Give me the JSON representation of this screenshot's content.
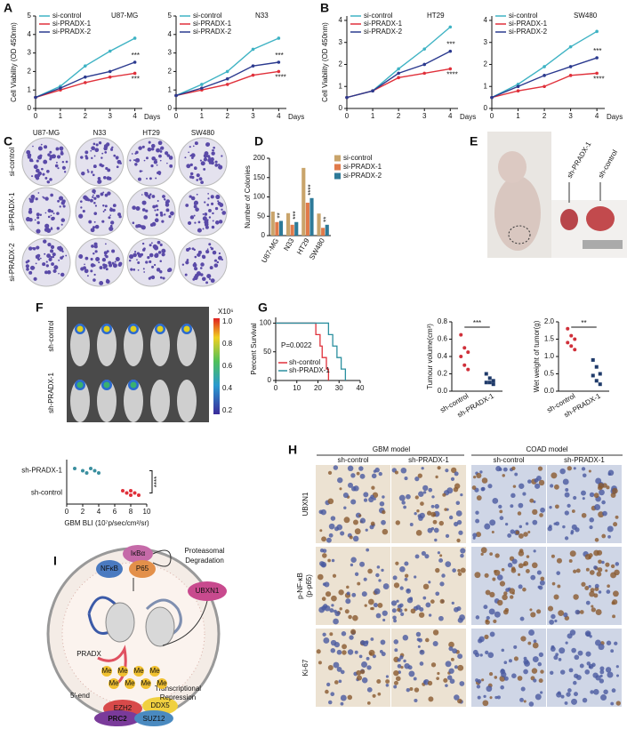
{
  "panel_labels": [
    "A",
    "B",
    "C",
    "D",
    "E",
    "F",
    "G",
    "H",
    "I"
  ],
  "colony_assay": {
    "columns": [
      "U87-MG",
      "N33",
      "HT29",
      "SW480"
    ],
    "rows": [
      "si-control",
      "si-PRADX-1",
      "si-PRADX-2"
    ]
  },
  "xenograft_photo": {
    "labels": [
      "sh-PRADX-1",
      "sh-control"
    ]
  },
  "bli_image": {
    "rows": [
      "sh-control",
      "sh-PRADX-1"
    ],
    "colorbar_unit": "X10⁶",
    "colorbar_ticks": [
      "1.0",
      "0.8",
      "0.6",
      "0.4",
      "0.2"
    ]
  },
  "ihc": {
    "models": [
      "GBM model",
      "COAD model"
    ],
    "columns": [
      "sh-control",
      "sh-PRADX-1",
      "sh-control",
      "sh-PRADX-1"
    ],
    "rows": [
      [
        "UBXN1"
      ],
      [
        "p-NF-κB",
        "(p-p65)"
      ],
      [
        "Ki-67"
      ]
    ]
  },
  "diagram": {
    "ikba": "IκBα",
    "nfkb": "NFκB",
    "p65": "P65",
    "degradation": [
      "Proteasomal",
      "Degradation"
    ],
    "ubxn1": "UBXN1",
    "pradx": "PRADX",
    "me": [
      "Me",
      "Me",
      "Me",
      "Me",
      "Me",
      "Me",
      "Me",
      "Me"
    ],
    "repression": [
      "Transcriptional",
      "Repression"
    ],
    "five_end": "5'-end",
    "ezh2": "EZH2",
    "ddx5": "DDX5",
    "prc2": "PRC2",
    "suz12": "SUZ12"
  },
  "chart_data": [
    {
      "type": "line",
      "title": "U87-MG",
      "ylabel": "Cell Viability (OD 450nm)",
      "xlabel": "Days",
      "x": [
        0,
        1,
        2,
        3,
        4
      ],
      "xlim": [
        0,
        4.3
      ],
      "xticks": [
        0,
        1,
        2,
        3,
        4
      ],
      "ylim": [
        0,
        5
      ],
      "yticks": [
        0,
        1,
        2,
        3,
        4,
        5
      ],
      "series": [
        {
          "name": "si-control",
          "color": "#3fb3c4",
          "values": [
            0.6,
            1.2,
            2.3,
            3.1,
            3.8
          ]
        },
        {
          "name": "si-PRADX-1",
          "color": "#e0313b",
          "values": [
            0.6,
            1.0,
            1.4,
            1.7,
            1.9
          ]
        },
        {
          "name": "si-PRADX-2",
          "color": "#2b3a8f",
          "values": [
            0.6,
            1.1,
            1.7,
            2.0,
            2.5
          ]
        }
      ],
      "annotations": [
        "***",
        "***"
      ]
    },
    {
      "type": "line",
      "title": "N33",
      "xlabel": "Days",
      "x": [
        0,
        1,
        2,
        3,
        4
      ],
      "xlim": [
        0,
        4.3
      ],
      "xticks": [
        0,
        1,
        2,
        3,
        4
      ],
      "ylim": [
        0,
        5
      ],
      "yticks": [
        0,
        1,
        2,
        3,
        4,
        5
      ],
      "series": [
        {
          "name": "si-control",
          "color": "#3fb3c4",
          "values": [
            0.7,
            1.3,
            2.0,
            3.2,
            3.8
          ]
        },
        {
          "name": "si-PRADX-1",
          "color": "#e0313b",
          "values": [
            0.7,
            1.0,
            1.3,
            1.8,
            2.0
          ]
        },
        {
          "name": "si-PRADX-2",
          "color": "#2b3a8f",
          "values": [
            0.7,
            1.1,
            1.6,
            2.3,
            2.5
          ]
        }
      ],
      "annotations": [
        "***",
        "****"
      ]
    },
    {
      "type": "line",
      "title": "HT29",
      "ylabel": "Cell Viability (OD 450nm)",
      "xlabel": "Days",
      "x": [
        0,
        1,
        2,
        3,
        4
      ],
      "xlim": [
        0,
        4.3
      ],
      "xticks": [
        0,
        1,
        2,
        3,
        4
      ],
      "ylim": [
        0,
        4.2
      ],
      "yticks": [
        0,
        1,
        2,
        3,
        4
      ],
      "series": [
        {
          "name": "si-control",
          "color": "#3fb3c4",
          "values": [
            0.5,
            0.8,
            1.8,
            2.7,
            3.7
          ]
        },
        {
          "name": "si-PRADX-1",
          "color": "#e0313b",
          "values": [
            0.5,
            0.8,
            1.4,
            1.6,
            1.8
          ]
        },
        {
          "name": "si-PRADX-2",
          "color": "#2b3a8f",
          "values": [
            0.5,
            0.8,
            1.6,
            2.0,
            2.6
          ]
        }
      ],
      "annotations": [
        "***",
        "****"
      ]
    },
    {
      "type": "line",
      "title": "SW480",
      "xlabel": "Days",
      "x": [
        0,
        1,
        2,
        3,
        4
      ],
      "xlim": [
        0,
        4.3
      ],
      "xticks": [
        0,
        1,
        2,
        3,
        4
      ],
      "ylim": [
        0,
        4.2
      ],
      "yticks": [
        0,
        1,
        2,
        3,
        4
      ],
      "series": [
        {
          "name": "si-control",
          "color": "#3fb3c4",
          "values": [
            0.5,
            1.1,
            1.9,
            2.8,
            3.5
          ]
        },
        {
          "name": "si-PRADX-1",
          "color": "#e0313b",
          "values": [
            0.5,
            0.8,
            1.0,
            1.5,
            1.6
          ]
        },
        {
          "name": "si-PRADX-2",
          "color": "#2b3a8f",
          "values": [
            0.5,
            1.0,
            1.5,
            1.9,
            2.3
          ]
        }
      ],
      "annotations": [
        "***",
        "****"
      ]
    },
    {
      "type": "bar",
      "ylabel": "Number of Colonies",
      "categories": [
        "U87-MG",
        "N33",
        "HT29",
        "SW480"
      ],
      "ylim": [
        0,
        200
      ],
      "yticks": [
        0,
        50,
        100,
        150,
        200
      ],
      "series": [
        {
          "name": "si-control",
          "color": "#c9a46b",
          "values": [
            62,
            58,
            175,
            57
          ]
        },
        {
          "name": "si-PRADX-1",
          "color": "#e07a4a",
          "values": [
            35,
            28,
            85,
            20
          ]
        },
        {
          "name": "si-PRADX-2",
          "color": "#2e7a98",
          "values": [
            38,
            35,
            97,
            28
          ]
        }
      ],
      "annotations": [
        "**",
        "***",
        "****",
        "**"
      ]
    },
    {
      "type": "scatter",
      "ylabel": "Tumour volume(cm³)",
      "categories": [
        "sh-control",
        "sh-PRADX-1"
      ],
      "colors": [
        "#d0303a",
        "#1f3a6a"
      ],
      "values": [
        [
          0.65,
          0.5,
          0.45,
          0.4,
          0.3,
          0.25
        ],
        [
          0.2,
          0.15,
          0.12,
          0.1,
          0.1,
          0.08
        ]
      ],
      "ylim": [
        0,
        0.8
      ],
      "yticks": [
        {
          "value": 0,
          "label": "0.0"
        },
        0.2,
        0.4,
        0.6,
        0.8
      ],
      "annotation": "***"
    },
    {
      "type": "scatter",
      "ylabel": "Wet weight of tumor(g)",
      "categories": [
        "sh-control",
        "sh-PRADX-1"
      ],
      "colors": [
        "#d0303a",
        "#1f3a6a"
      ],
      "values": [
        [
          1.8,
          1.6,
          1.5,
          1.4,
          1.3,
          1.2
        ],
        [
          0.9,
          0.7,
          0.5,
          0.45,
          0.3,
          0.2
        ]
      ],
      "ylim": [
        0,
        2
      ],
      "yticks": [
        {
          "value": 0,
          "label": "0.0"
        },
        0.5,
        {
          "value": 1,
          "label": "1.0"
        },
        1.5,
        {
          "value": 2,
          "label": "2.0"
        }
      ],
      "annotation": "**"
    },
    {
      "type": "scatter",
      "orientation": "horizontal",
      "xlabel": "GBM BLI (10⁷p/sec/cm²/sr)",
      "categories": [
        "sh-PRADX-1",
        "sh-control"
      ],
      "colors": [
        "#3a8f9f",
        "#e0313b"
      ],
      "values": [
        [
          1,
          2,
          2.5,
          3,
          3.5,
          4
        ],
        [
          7,
          7.5,
          8,
          8,
          8.5,
          9
        ]
      ],
      "xlim": [
        0,
        10
      ],
      "xticks": [
        0,
        2,
        4,
        6,
        8,
        10
      ],
      "annotation": "****"
    },
    {
      "type": "survival",
      "ylabel": "Percent Survival",
      "annotation": "P=0.0022",
      "xlim": [
        0,
        40
      ],
      "xticks": [
        0,
        10,
        20,
        30,
        40
      ],
      "ylim": [
        0,
        110
      ],
      "yticks": [
        0,
        50,
        100
      ],
      "series": [
        {
          "name": "sh-control",
          "color": "#e0313b",
          "x": [
            0,
            19,
            19,
            21,
            21,
            22,
            22,
            24,
            24,
            25,
            25
          ],
          "values": [
            100,
            100,
            80,
            80,
            60,
            60,
            40,
            40,
            20,
            20,
            0
          ]
        },
        {
          "name": "sh-PRADX-1",
          "color": "#2a8f9f",
          "x": [
            0,
            25,
            25,
            27,
            27,
            29,
            29,
            31,
            31,
            33,
            33
          ],
          "values": [
            100,
            100,
            80,
            80,
            60,
            60,
            40,
            40,
            20,
            20,
            0
          ]
        }
      ]
    }
  ]
}
